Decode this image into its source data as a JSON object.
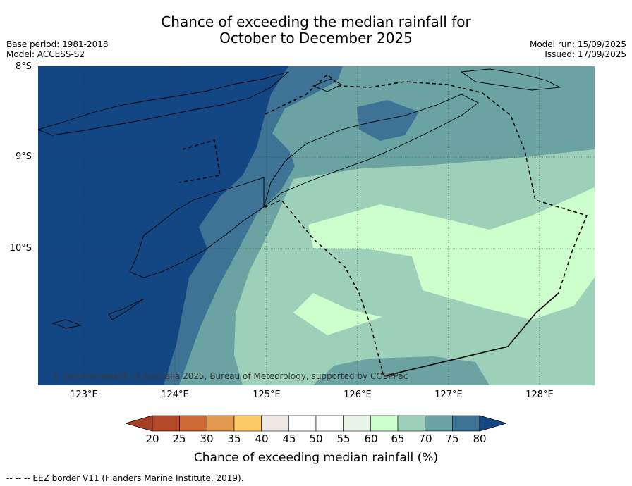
{
  "title_line1": "Chance of exceeding the median rainfall for",
  "title_line2": "October to December 2025",
  "meta_left": {
    "base_period": "Base period: 1981-2018",
    "model": "Model: ACCESS-S2"
  },
  "meta_right": {
    "model_run": "Model run: 15/09/2025",
    "issued": "Issued: 17/09/2025"
  },
  "lat_labels": [
    "8°S",
    "9°S",
    "10°S"
  ],
  "lon_labels": [
    "123°E",
    "124°E",
    "125°E",
    "126°E",
    "127°E",
    "128°E"
  ],
  "copyright": "© Commonwealth of Australia 2025, Bureau of Meteorology, supported by COSPPac",
  "colorbar": {
    "ticks": [
      "20",
      "25",
      "30",
      "35",
      "40",
      "45",
      "50",
      "55",
      "60",
      "65",
      "70",
      "75",
      "80"
    ],
    "colors": [
      "#a83f24",
      "#b54a2a",
      "#cc6a38",
      "#e29a4e",
      "#fdcb68",
      "#ece7e2",
      "#ffffff",
      "#ffffff",
      "#eaf5ea",
      "#ccffcc",
      "#9dd0b8",
      "#6ba3a3",
      "#3f7396",
      "#134784"
    ],
    "label": "Chance of exceeding median rainfall (%)"
  },
  "legend_footer": "-- -- -- EEZ border V11 (Flanders Marine Institute, 2019).",
  "map_colors": {
    "gt80": "#134784",
    "p75_80": "#3f7396",
    "p70_75": "#6ba3a3",
    "p65_70": "#9dd0b8",
    "p60_65": "#ccffcc"
  }
}
